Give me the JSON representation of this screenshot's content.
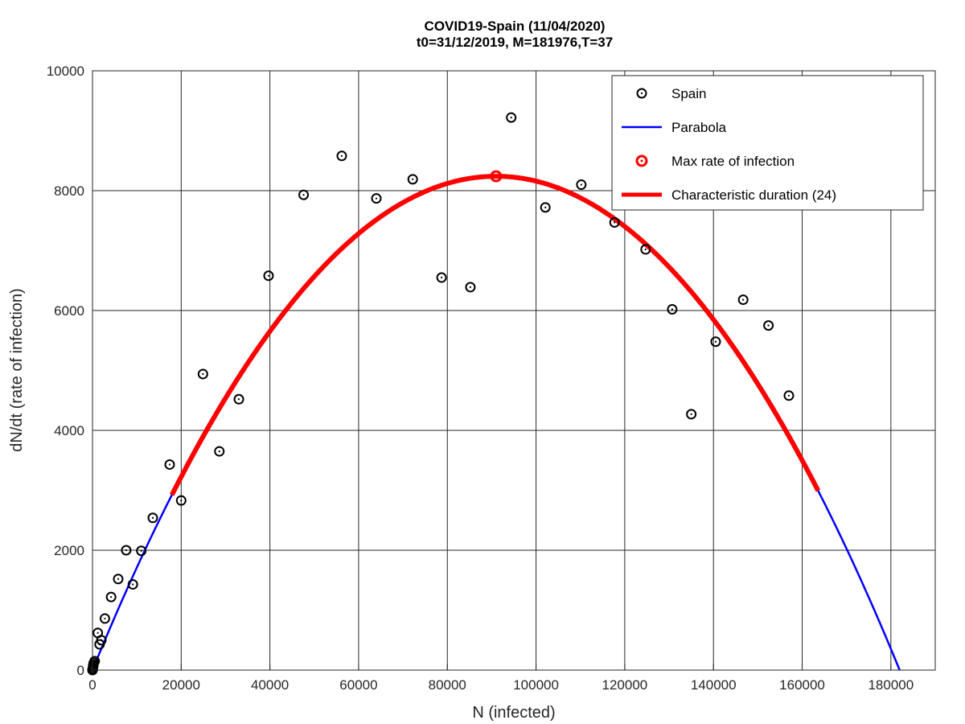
{
  "chart_data": {
    "type": "scatter",
    "title": "COVID19-Spain (11/04/2020)",
    "subtitle": "t0=31/12/2019, M=181976,T=37",
    "xlabel": "N (infected)",
    "ylabel": "dN/dt (rate of infection)",
    "xlim": [
      0,
      190000
    ],
    "ylim": [
      0,
      10000
    ],
    "x_ticks": [
      0,
      20000,
      40000,
      60000,
      80000,
      100000,
      120000,
      140000,
      160000,
      180000
    ],
    "y_ticks": [
      0,
      2000,
      4000,
      6000,
      8000,
      10000
    ],
    "grid": true,
    "legend_position": "top-right",
    "colors": {
      "points": "#000000",
      "parabola": "#0000ff",
      "max_rate": "#ff0000",
      "characteristic": "#ff0000"
    },
    "series": [
      {
        "name": "Spain",
        "kind": "points",
        "points": [
          [
            0,
            0
          ],
          [
            50,
            10
          ],
          [
            100,
            30
          ],
          [
            150,
            60
          ],
          [
            200,
            90
          ],
          [
            300,
            120
          ],
          [
            500,
            150
          ],
          [
            1200,
            620
          ],
          [
            1600,
            430
          ],
          [
            2000,
            500
          ],
          [
            2800,
            860
          ],
          [
            4200,
            1220
          ],
          [
            5800,
            1520
          ],
          [
            7600,
            2000
          ],
          [
            9100,
            1430
          ],
          [
            11000,
            1990
          ],
          [
            13600,
            2540
          ],
          [
            17400,
            3430
          ],
          [
            20000,
            2830
          ],
          [
            24900,
            4940
          ],
          [
            28600,
            3650
          ],
          [
            33000,
            4520
          ],
          [
            39700,
            6580
          ],
          [
            47600,
            7930
          ],
          [
            56200,
            8580
          ],
          [
            64000,
            7870
          ],
          [
            72200,
            8190
          ],
          [
            78700,
            6550
          ],
          [
            85200,
            6390
          ],
          [
            94400,
            9220
          ],
          [
            102100,
            7720
          ],
          [
            110200,
            8100
          ],
          [
            117700,
            7470
          ],
          [
            124700,
            7020
          ],
          [
            130700,
            6020
          ],
          [
            135000,
            4270
          ],
          [
            140500,
            5480
          ],
          [
            146700,
            6180
          ],
          [
            152400,
            5750
          ],
          [
            157000,
            4580
          ]
        ]
      },
      {
        "name": "Parabola",
        "kind": "curve",
        "M": 181976,
        "peak_rate": 8240,
        "x_range": [
          0,
          181976
        ]
      },
      {
        "name": "Max rate of infection",
        "kind": "marker",
        "points": [
          [
            90988,
            8240
          ]
        ]
      },
      {
        "name": "Characteristic duration (24)",
        "kind": "curve-segment",
        "x_range": [
          17900,
          163600
        ]
      }
    ]
  }
}
